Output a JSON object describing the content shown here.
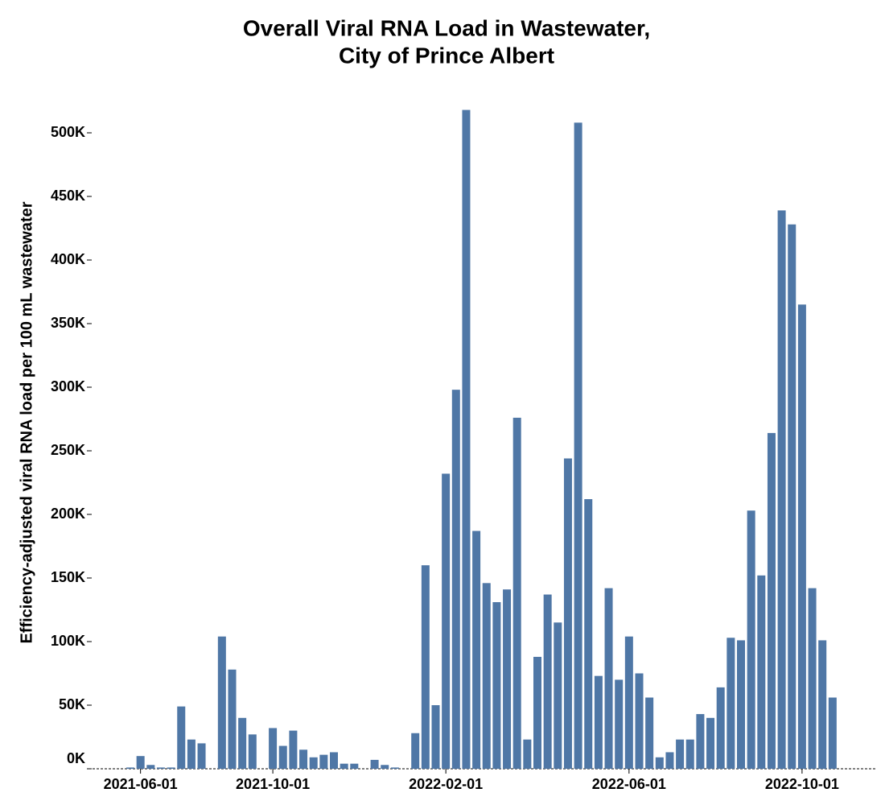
{
  "chart_data": {
    "type": "bar",
    "title": [
      "Overall Viral RNA Load in Wastewater,",
      "City of Prince Albert"
    ],
    "y_label": "Efficiency-adjusted viral RNA load per 100 mL wastewater",
    "color": "#4f77a6",
    "categories": [
      null,
      "2021-06-01",
      null,
      null,
      null,
      null,
      null,
      null,
      null,
      null,
      null,
      null,
      null,
      null,
      "2021-10-01",
      null,
      null,
      null,
      null,
      null,
      null,
      null,
      null,
      null,
      null,
      null,
      null,
      null,
      null,
      null,
      null,
      "2022-02-01",
      null,
      null,
      null,
      null,
      null,
      null,
      null,
      null,
      null,
      null,
      null,
      null,
      null,
      null,
      null,
      null,
      null,
      "2022-06-01",
      null,
      null,
      null,
      null,
      null,
      null,
      null,
      null,
      null,
      null,
      null,
      null,
      null,
      null,
      null,
      null,
      "2022-10-01",
      null,
      null,
      null
    ],
    "values": [
      1000,
      10000,
      3000,
      1000,
      1000,
      49000,
      23000,
      20000,
      null,
      104000,
      78000,
      40000,
      27000,
      null,
      32000,
      18000,
      30000,
      15000,
      9000,
      11000,
      13000,
      4000,
      4000,
      null,
      7000,
      3000,
      1000,
      null,
      28000,
      160000,
      50000,
      232000,
      298000,
      518000,
      187000,
      146000,
      131000,
      141000,
      276000,
      23000,
      88000,
      137000,
      115000,
      244000,
      508000,
      212000,
      73000,
      142000,
      70000,
      104000,
      75000,
      56000,
      9000,
      13000,
      23000,
      23000,
      43000,
      40000,
      64000,
      103000,
      101000,
      203000,
      152000,
      264000,
      439000,
      428000,
      365000,
      142000,
      101000,
      56000
    ],
    "ylim": [
      0,
      530000
    ],
    "yticks": [
      {
        "value": 0,
        "label": "0K"
      },
      {
        "value": 50000,
        "label": "50K"
      },
      {
        "value": 100000,
        "label": "100K"
      },
      {
        "value": 150000,
        "label": "150K"
      },
      {
        "value": 200000,
        "label": "200K"
      },
      {
        "value": 250000,
        "label": "250K"
      },
      {
        "value": 300000,
        "label": "300K"
      },
      {
        "value": 350000,
        "label": "350K"
      },
      {
        "value": 400000,
        "label": "400K"
      },
      {
        "value": 450000,
        "label": "450K"
      },
      {
        "value": 500000,
        "label": "500K"
      }
    ]
  }
}
